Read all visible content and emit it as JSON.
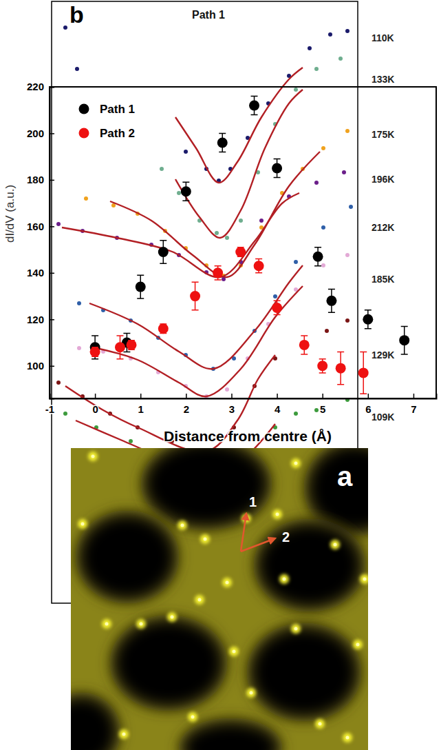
{
  "chart_data": [
    {
      "type": "scatter",
      "panel_label": "b",
      "title": "Path 1",
      "y_label": "dI/dV (a.u.)",
      "xlim": [
        0,
        445
      ],
      "ylim": [
        0,
        873
      ],
      "tick_labels": false,
      "series": [
        {
          "name": "110K",
          "type": "scatter",
          "marker": "circle",
          "color": "#1b1b6b",
          "x": [
            20,
            37,
            75,
            125,
            165,
            195,
            225,
            243,
            260,
            285,
            315,
            345,
            375,
            405,
            430
          ],
          "values": [
            835,
            775,
            710,
            685,
            675,
            655,
            630,
            613,
            630,
            675,
            725,
            765,
            805,
            825,
            830
          ]
        },
        {
          "type": "line",
          "color": "#b21f24",
          "x": [
            180,
            210,
            243,
            270,
            305,
            345,
            365
          ],
          "values": [
            705,
            660,
            610,
            640,
            705,
            760,
            777
          ]
        },
        {
          "name": "133K",
          "type": "scatter",
          "marker": "circle",
          "color": "#6fae8f",
          "x": [
            120,
            160,
            185,
            215,
            240,
            255,
            275,
            300,
            325,
            355,
            385,
            420
          ],
          "values": [
            650,
            630,
            595,
            555,
            537,
            530,
            555,
            625,
            695,
            745,
            775,
            790
          ]
        },
        {
          "type": "line",
          "color": "#b21f24",
          "x": [
            180,
            215,
            245,
            275,
            310,
            345,
            365
          ],
          "values": [
            615,
            560,
            530,
            570,
            660,
            725,
            745
          ]
        },
        {
          "name": "175K",
          "type": "scatter",
          "marker": "circle",
          "color": "#f0a21e",
          "x": [
            50,
            90,
            125,
            165,
            195,
            225,
            250,
            275,
            305,
            335,
            365,
            395,
            430
          ],
          "values": [
            587,
            577,
            565,
            540,
            515,
            490,
            475,
            490,
            545,
            595,
            630,
            660,
            685
          ]
        },
        {
          "type": "line",
          "color": "#b21f24",
          "x": [
            85,
            145,
            205,
            255,
            295,
            345,
            390
          ],
          "values": [
            583,
            555,
            505,
            473,
            520,
            605,
            655
          ]
        },
        {
          "name": "196K",
          "type": "scatter",
          "marker": "circle",
          "color": "#6b1f8a",
          "x": [
            10,
            45,
            95,
            145,
            185,
            225,
            250,
            275,
            305,
            345,
            385,
            425
          ],
          "values": [
            550,
            540,
            530,
            520,
            505,
            480,
            470,
            495,
            555,
            590,
            610,
            625
          ]
        },
        {
          "type": "line",
          "color": "#b21f24",
          "x": [
            15,
            95,
            175,
            245,
            295,
            335,
            360
          ],
          "values": [
            545,
            530,
            510,
            473,
            525,
            580,
            595
          ]
        },
        {
          "name": "212K",
          "type": "scatter",
          "marker": "circle",
          "color": "#2f5fa8",
          "x": [
            40,
            75,
            115,
            155,
            195,
            235,
            265,
            295,
            325,
            355,
            395,
            435
          ],
          "values": [
            435,
            425,
            410,
            385,
            360,
            340,
            355,
            395,
            445,
            495,
            545,
            575
          ]
        },
        {
          "type": "line",
          "color": "#b21f24",
          "x": [
            55,
            125,
            185,
            235,
            295,
            345,
            365
          ],
          "values": [
            435,
            405,
            365,
            340,
            395,
            465,
            490
          ]
        },
        {
          "name": "185K",
          "type": "scatter",
          "marker": "circle",
          "color": "#e3a9d6",
          "x": [
            40,
            75,
            115,
            155,
            195,
            225,
            255,
            285,
            315,
            355,
            395,
            430
          ],
          "values": [
            370,
            365,
            355,
            335,
            315,
            300,
            310,
            355,
            405,
            455,
            490,
            505
          ]
        },
        {
          "type": "line",
          "color": "#b21f24",
          "x": [
            65,
            125,
            185,
            225,
            275,
            325,
            365
          ],
          "values": [
            370,
            353,
            320,
            300,
            340,
            415,
            460
          ]
        },
        {
          "name": "129K",
          "type": "scatter",
          "marker": "circle",
          "color": "#7b1515",
          "x": [
            10,
            45,
            85,
            125,
            175,
            225,
            265,
            295,
            325,
            365,
            400,
            430
          ],
          "values": [
            320,
            300,
            275,
            255,
            235,
            220,
            255,
            315,
            355,
            375,
            395,
            410
          ]
        },
        {
          "type": "line",
          "color": "#b21f24",
          "x": [
            20,
            75,
            125,
            225,
            270,
            300,
            325
          ],
          "values": [
            315,
            280,
            255,
            220,
            265,
            325,
            360
          ]
        },
        {
          "name": "109K",
          "type": "scatter",
          "marker": "circle",
          "color": "#3d9b3d",
          "x": [
            20,
            65,
            115,
            175,
            235,
            285,
            325,
            355,
            385,
            430
          ],
          "values": [
            275,
            255,
            235,
            210,
            185,
            205,
            255,
            275,
            280,
            295
          ]
        },
        {
          "type": "line",
          "color": "#b21f24",
          "x": [
            35,
            105,
            175,
            235,
            285,
            325
          ],
          "values": [
            265,
            235,
            205,
            183,
            215,
            260
          ]
        }
      ]
    },
    {
      "type": "scatter",
      "xlabel": "Distance from centre (Å)",
      "xlim": [
        -1,
        7.5
      ],
      "ylim": [
        86,
        220
      ],
      "xticks": [
        -1,
        0,
        1,
        2,
        3,
        4,
        5,
        6,
        7
      ],
      "yticks": [
        100,
        120,
        140,
        160,
        180,
        200,
        220
      ],
      "legend": "upper left",
      "series": [
        {
          "name": "Path 1",
          "color": "#000000",
          "marker": "circle",
          "x": [
            0,
            0.7,
            1,
            1.5,
            2,
            2.8,
            3.5,
            4,
            4.9,
            5.2,
            6,
            6.8
          ],
          "values": [
            108,
            110,
            134,
            149,
            175,
            196,
            212,
            185,
            147,
            128,
            120,
            111
          ],
          "errors": [
            5,
            4,
            5,
            5,
            4,
            4,
            4,
            4,
            4,
            5,
            4,
            6
          ]
        },
        {
          "name": "Path 2",
          "color": "#ee1111",
          "marker": "circle",
          "x": [
            0,
            0.55,
            0.8,
            1.5,
            2.2,
            2.7,
            3.2,
            3.6,
            4,
            4.6,
            5,
            5.4,
            5.9
          ],
          "values": [
            106,
            108,
            109,
            116,
            130,
            140,
            149,
            143,
            125,
            109,
            100,
            99,
            97
          ],
          "errors": [
            2,
            5,
            2,
            2,
            6,
            3,
            2,
            3,
            3,
            4,
            3,
            7,
            9
          ]
        }
      ]
    }
  ],
  "image": {
    "panel_label": "a",
    "arrow_labels": [
      "1",
      "2"
    ]
  }
}
